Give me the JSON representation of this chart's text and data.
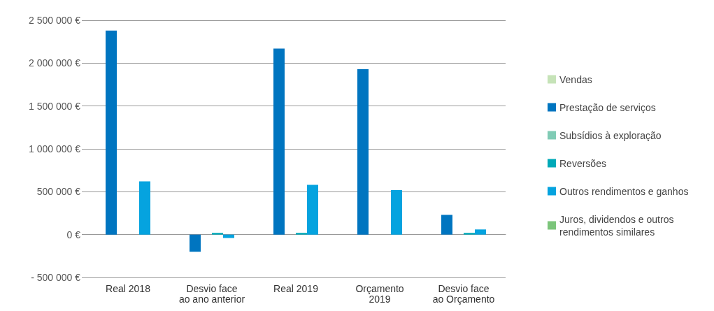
{
  "chart_data": {
    "type": "bar",
    "categories": [
      "Real 2018",
      "Desvio face\nao ano anterior",
      "Real 2019",
      "Orçamento\n2019",
      "Desvio face\nao Orçamento"
    ],
    "series": [
      {
        "name": "Vendas",
        "color": "#c6e3b8",
        "values": [
          0,
          0,
          0,
          0,
          0
        ]
      },
      {
        "name": "Prestação de serviços",
        "color": "#0075c0",
        "values": [
          2380000,
          -200000,
          2170000,
          1930000,
          230000
        ]
      },
      {
        "name": "Subsídios à exploração",
        "color": "#80cbb5",
        "values": [
          0,
          0,
          0,
          0,
          0
        ]
      },
      {
        "name": "Reversões",
        "color": "#00a9b8",
        "values": [
          0,
          20000,
          20000,
          0,
          20000
        ]
      },
      {
        "name": "Outros rendimentos e ganhos",
        "color": "#05a3df",
        "values": [
          620000,
          -40000,
          580000,
          520000,
          60000
        ]
      },
      {
        "name": "Juros, dividendos e outros\nrendimentos similares",
        "color": "#7cc57b",
        "values": [
          0,
          0,
          0,
          0,
          0
        ]
      }
    ],
    "ylim": [
      -500000,
      2500000
    ],
    "yticks": [
      {
        "value": -500000,
        "label": "- 500 000 €"
      },
      {
        "value": 0,
        "label": "0 €"
      },
      {
        "value": 500000,
        "label": "500 000 €"
      },
      {
        "value": 1000000,
        "label": "1 000 000 €"
      },
      {
        "value": 1500000,
        "label": "1 500 000 €"
      },
      {
        "value": 2000000,
        "label": "2 000 000 €"
      },
      {
        "value": 2500000,
        "label": "2 500 000 €"
      }
    ],
    "grid": "y",
    "legend": "right"
  }
}
